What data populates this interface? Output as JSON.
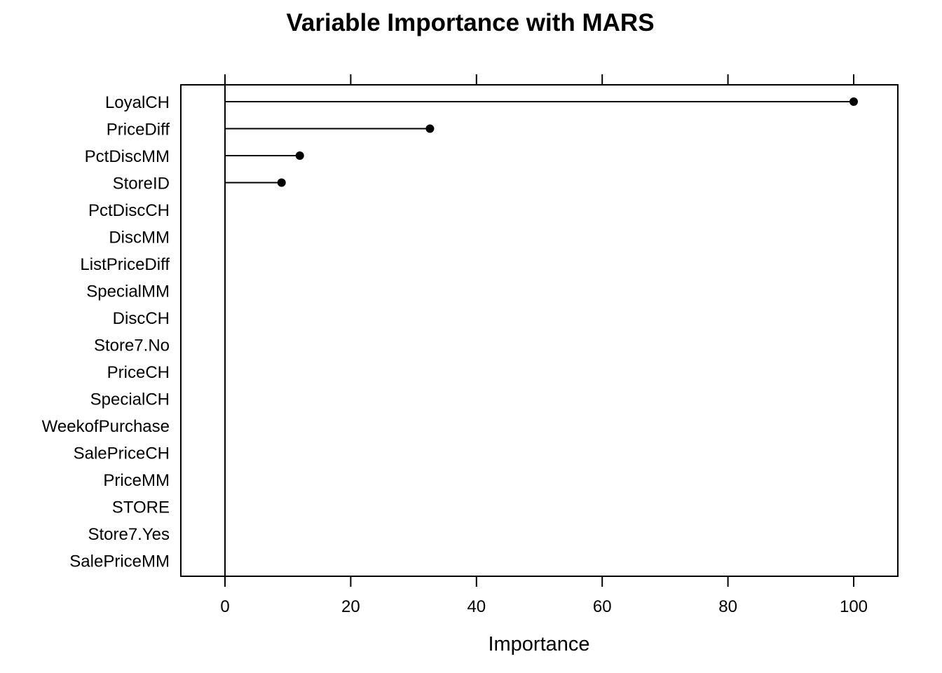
{
  "chart_data": {
    "type": "scatter",
    "title": "Variable Importance with MARS",
    "xlabel": "Importance",
    "ylabel": "",
    "xlim": [
      -7,
      107
    ],
    "x_ticks": [
      0,
      20,
      40,
      60,
      80,
      100
    ],
    "x_tick_labels": [
      "0",
      "20",
      "40",
      "60",
      "80",
      "100"
    ],
    "grid": false,
    "legend": "none",
    "marker_color": "#000000",
    "categories": [
      "LoyalCH",
      "PriceDiff",
      "PctDiscMM",
      "StoreID",
      "PctDiscCH",
      "DiscMM",
      "ListPriceDiff",
      "SpecialMM",
      "DiscCH",
      "Store7.No",
      "PriceCH",
      "SpecialCH",
      "WeekofPurchase",
      "SalePriceCH",
      "PriceMM",
      "STORE",
      "Store7.Yes",
      "SalePriceMM"
    ],
    "values": [
      100,
      32.6,
      11.9,
      9.0,
      0,
      0,
      0,
      0,
      0,
      0,
      0,
      0,
      0,
      0,
      0,
      0,
      0,
      0
    ]
  }
}
